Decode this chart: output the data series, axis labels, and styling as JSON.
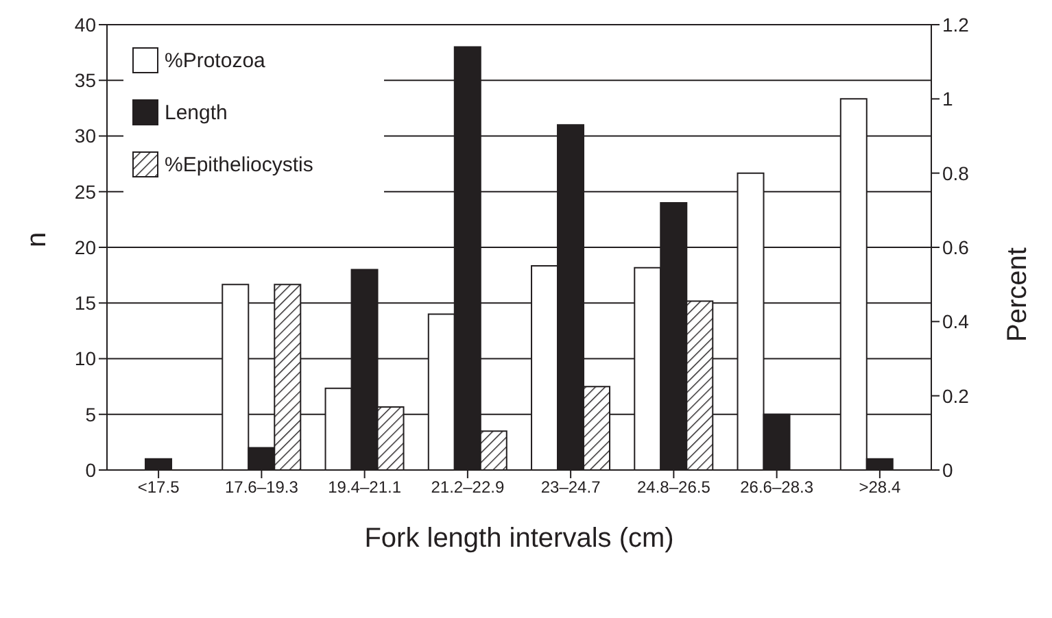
{
  "chart_data": {
    "type": "bar",
    "xlabel": "Fork length intervals (cm)",
    "ylabel": "n",
    "y2label": "Percent",
    "categories": [
      "<17.5",
      "17.6–19.3",
      "19.4–21.1",
      "21.2–22.9",
      "23–24.7",
      "24.8–26.5",
      "26.6–28.3",
      ">28.4"
    ],
    "series": [
      {
        "name": "%Protozoa",
        "color": "#ffffff",
        "axis": "y2",
        "values": [
          0,
          0.5,
          0.22,
          0.42,
          0.55,
          0.545,
          0.8,
          1.0
        ]
      },
      {
        "name": "Length",
        "color": "#231f20",
        "values": [
          1,
          2,
          18,
          38,
          31,
          24,
          5,
          1
        ]
      },
      {
        "name": "%Epitheliocystis",
        "color": "#231f20",
        "axis": "y2",
        "values": [
          0,
          0.5,
          0.17,
          0.105,
          0.225,
          0.455,
          0,
          0
        ]
      }
    ],
    "ylim": [
      0,
      40
    ],
    "yticks": [
      0,
      5,
      10,
      15,
      20,
      25,
      30,
      35,
      40
    ],
    "y2lim": [
      0,
      1.2
    ],
    "y2ticks": [
      0,
      0.2,
      0.4,
      0.6,
      0.8,
      1,
      1.2
    ],
    "grid": "y",
    "legend": "top left"
  }
}
